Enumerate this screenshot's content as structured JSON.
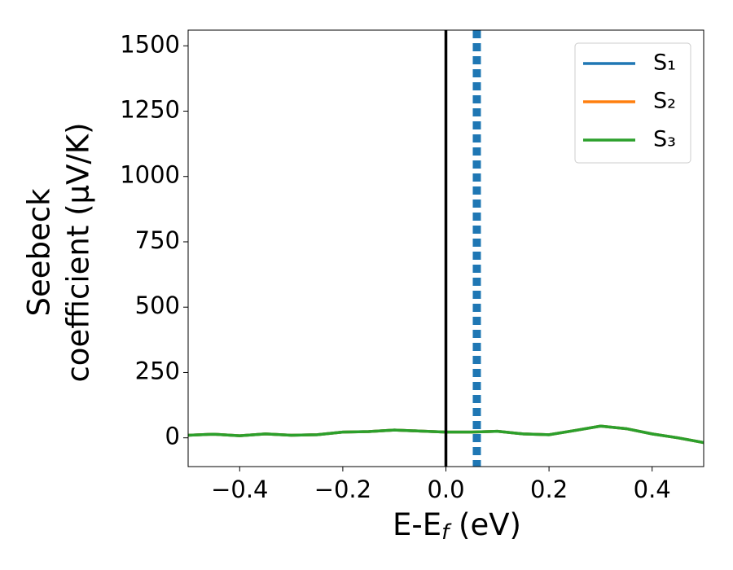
{
  "chart_data": {
    "type": "line",
    "xlabel": {
      "main": "E-E",
      "sub": "f",
      "unit": " (eV)"
    },
    "ylabel": [
      "Seebeck",
      "coefficient  (μV/K)"
    ],
    "x": [
      -0.5,
      -0.45,
      -0.4,
      -0.35,
      -0.3,
      -0.25,
      -0.2,
      -0.15,
      -0.1,
      -0.05,
      0,
      0.05,
      0.1,
      0.15,
      0.2,
      0.25,
      0.3,
      0.35,
      0.4,
      0.45,
      0.5
    ],
    "series": [
      {
        "name": "S₁",
        "color": "#1f77b4",
        "values": [
          10,
          14,
          8,
          15,
          10,
          12,
          22,
          24,
          30,
          26,
          22,
          22,
          25,
          15,
          12,
          28,
          45,
          35,
          15,
          0,
          -18
        ]
      },
      {
        "name": "S₂",
        "color": "#ff7f0e",
        "values": [
          10,
          14,
          8,
          15,
          10,
          12,
          22,
          24,
          30,
          26,
          22,
          22,
          25,
          15,
          12,
          28,
          45,
          35,
          15,
          0,
          -18
        ]
      },
      {
        "name": "S₃",
        "color": "#2ca02c",
        "values": [
          10,
          14,
          8,
          15,
          10,
          12,
          22,
          24,
          30,
          26,
          22,
          22,
          25,
          15,
          12,
          28,
          45,
          35,
          15,
          0,
          -18
        ]
      }
    ],
    "vlines": [
      {
        "x": 0,
        "color": "#000000",
        "style": "solid"
      },
      {
        "x": 0.06,
        "color": "#1f77b4",
        "style": "dashed"
      }
    ],
    "xlim": [
      -0.5,
      0.5
    ],
    "xticks": [
      {
        "value": -0.4,
        "label": "−0.4"
      },
      {
        "value": -0.2,
        "label": "−0.2"
      },
      {
        "value": 0,
        "label": "0.0"
      },
      0.2,
      0.4
    ],
    "ylim": [
      -110,
      1560
    ],
    "yticks": [
      0,
      250,
      500,
      750,
      1000,
      1250,
      1500
    ],
    "legend": "upper right",
    "grid": false
  }
}
